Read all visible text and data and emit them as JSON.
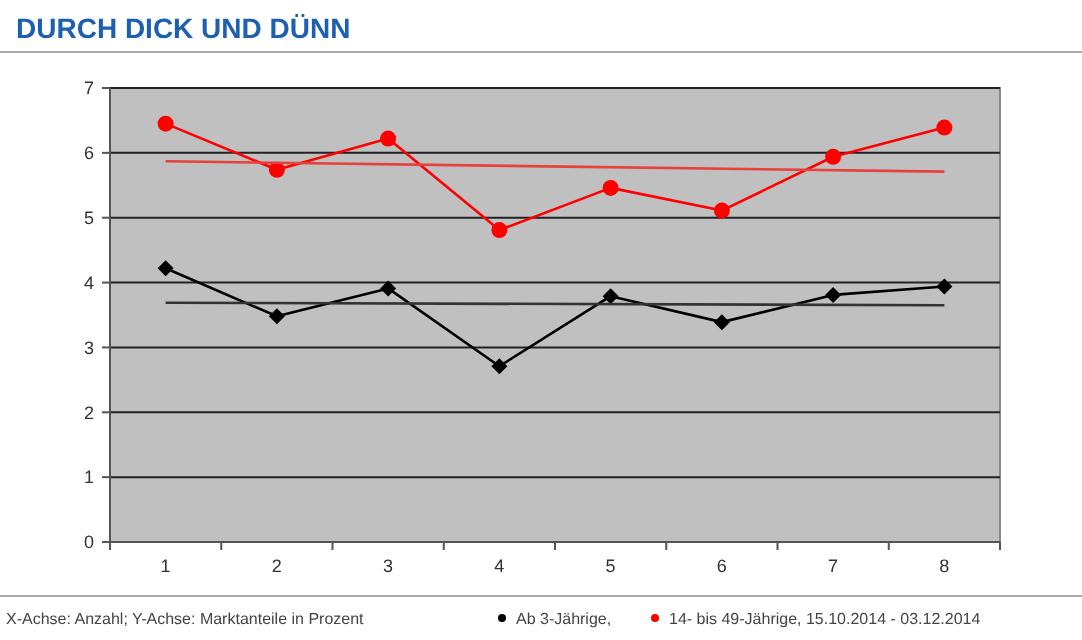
{
  "chart_data": {
    "type": "line",
    "title": "DURCH DICK UND DÜNN",
    "categories": [
      "1",
      "2",
      "3",
      "4",
      "5",
      "6",
      "7",
      "8"
    ],
    "series": [
      {
        "name": "Ab 3-Jährige,",
        "color": "#000000",
        "marker": "diamond",
        "values": [
          4.22,
          3.48,
          3.91,
          2.71,
          3.79,
          3.39,
          3.81,
          3.94
        ]
      },
      {
        "name": "14- bis 49-Jährige, 15.10.2014 - 03.12.2014",
        "color": "#ff0000",
        "marker": "circle",
        "values": [
          6.45,
          5.74,
          6.22,
          4.81,
          5.46,
          5.11,
          5.94,
          6.39
        ]
      },
      {
        "type": "line",
        "color": "#333333",
        "marker": "none",
        "x": [
          "1",
          "8"
        ],
        "values": [
          3.69,
          3.65
        ]
      },
      {
        "type": "line",
        "color": "#e8403a",
        "marker": "none",
        "x": [
          "1",
          "8"
        ],
        "values": [
          5.87,
          5.71
        ]
      }
    ],
    "ylim": [
      0,
      7
    ],
    "yticks": [
      0,
      1,
      2,
      3,
      4,
      5,
      6,
      7
    ],
    "grid": "y",
    "legend": "bottom",
    "annotations": [
      "X-Achse: Anzahl; Y-Achse: Marktanteile in Prozent"
    ]
  }
}
